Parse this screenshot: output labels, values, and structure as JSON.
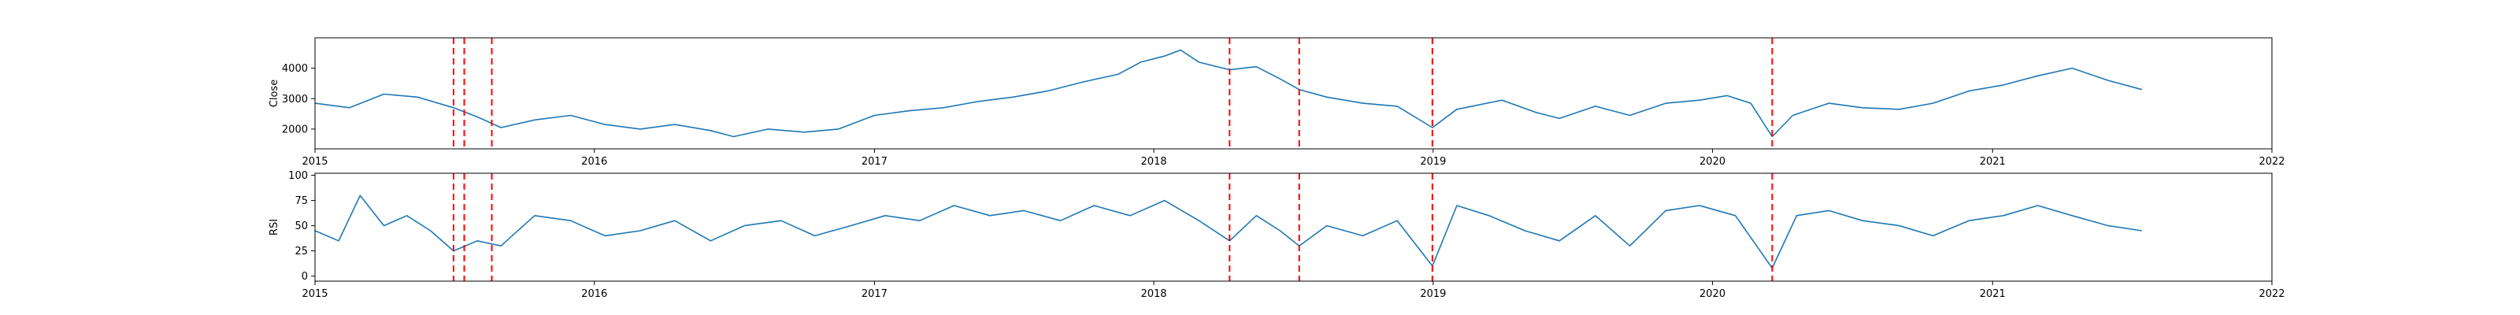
{
  "chart_data": [
    {
      "type": "line",
      "ylabel": "Close",
      "xlabel": "",
      "x_ticks": [
        "2015",
        "2016",
        "2017",
        "2018",
        "2019",
        "2020",
        "2021",
        "2022"
      ],
      "xlim": [
        "2015-01-01",
        "2022-01-01"
      ],
      "y_ticks": [
        2000,
        3000,
        4000
      ],
      "ylim": [
        1350,
        5000
      ],
      "series": [
        {
          "color": "#1f77b4",
          "x": [
            "2015-01-01",
            "2015-02-15",
            "2015-04-01",
            "2015-05-15",
            "2015-07-01",
            "2015-08-01",
            "2015-09-01",
            "2015-10-15",
            "2015-12-01",
            "2016-01-15",
            "2016-03-01",
            "2016-04-15",
            "2016-06-01",
            "2016-07-01",
            "2016-08-15",
            "2016-10-01",
            "2016-11-15",
            "2017-01-01",
            "2017-02-15",
            "2017-04-01",
            "2017-05-15",
            "2017-07-01",
            "2017-08-15",
            "2017-10-01",
            "2017-11-15",
            "2017-12-15",
            "2018-01-15",
            "2018-02-05",
            "2018-03-01",
            "2018-04-10",
            "2018-05-15",
            "2018-06-15",
            "2018-07-10",
            "2018-08-15",
            "2018-10-01",
            "2018-11-15",
            "2018-12-31",
            "2019-02-01",
            "2019-04-01",
            "2019-05-15",
            "2019-06-15",
            "2019-08-01",
            "2019-09-15",
            "2019-11-01",
            "2019-12-15",
            "2020-01-20",
            "2020-02-20",
            "2020-03-19",
            "2020-04-15",
            "2020-06-01",
            "2020-07-15",
            "2020-09-01",
            "2020-10-15",
            "2020-12-01",
            "2021-01-15",
            "2021-03-01",
            "2021-04-15",
            "2021-06-01",
            "2021-07-15"
          ],
          "y": [
            2850,
            2700,
            3150,
            3050,
            2700,
            2400,
            2050,
            2300,
            2450,
            2150,
            2000,
            2150,
            1950,
            1750,
            2000,
            1900,
            2000,
            2450,
            2600,
            2700,
            2900,
            3050,
            3250,
            3550,
            3800,
            4200,
            4400,
            4600,
            4200,
            3950,
            4050,
            3650,
            3300,
            3050,
            2850,
            2750,
            2050,
            2650,
            2950,
            2550,
            2350,
            2750,
            2450,
            2850,
            2950,
            3100,
            2850,
            1750,
            2450,
            2850,
            2700,
            2650,
            2850,
            3250,
            3450,
            3750,
            4000,
            3600,
            3300
          ]
        }
      ],
      "vlines": [
        "2015-07-01",
        "2015-07-15",
        "2015-08-20",
        "2018-04-10",
        "2018-07-10",
        "2018-12-31",
        "2020-03-19"
      ],
      "vline_color": "#ff0000",
      "grid": false,
      "legend": false
    },
    {
      "type": "line",
      "ylabel": "RSI",
      "xlabel": "",
      "x_ticks": [
        "2015",
        "2016",
        "2017",
        "2018",
        "2019",
        "2020",
        "2021",
        "2022"
      ],
      "xlim": [
        "2015-01-01",
        "2022-01-01"
      ],
      "y_ticks": [
        0,
        25,
        50,
        75,
        100
      ],
      "ylim": [
        -5,
        102
      ],
      "series": [
        {
          "color": "#1f77b4",
          "x": [
            "2015-01-01",
            "2015-02-01",
            "2015-03-01",
            "2015-04-01",
            "2015-05-01",
            "2015-06-01",
            "2015-07-01",
            "2015-08-01",
            "2015-09-01",
            "2015-10-15",
            "2015-12-01",
            "2016-01-15",
            "2016-03-01",
            "2016-04-15",
            "2016-06-01",
            "2016-07-15",
            "2016-09-01",
            "2016-10-15",
            "2016-12-01",
            "2017-01-15",
            "2017-03-01",
            "2017-04-15",
            "2017-06-01",
            "2017-07-15",
            "2017-09-01",
            "2017-10-15",
            "2017-12-01",
            "2018-01-15",
            "2018-03-01",
            "2018-04-10",
            "2018-05-15",
            "2018-06-15",
            "2018-07-10",
            "2018-08-15",
            "2018-10-01",
            "2018-11-15",
            "2018-12-31",
            "2019-02-01",
            "2019-03-15",
            "2019-05-01",
            "2019-06-15",
            "2019-08-01",
            "2019-09-15",
            "2019-11-01",
            "2019-12-15",
            "2020-01-31",
            "2020-03-19",
            "2020-04-20",
            "2020-06-01",
            "2020-07-15",
            "2020-09-01",
            "2020-10-15",
            "2020-12-01",
            "2021-01-15",
            "2021-03-01",
            "2021-04-15",
            "2021-06-01",
            "2021-07-15"
          ],
          "y": [
            45,
            35,
            80,
            50,
            60,
            45,
            25,
            35,
            30,
            60,
            55,
            40,
            45,
            55,
            35,
            50,
            55,
            40,
            50,
            60,
            55,
            70,
            60,
            65,
            55,
            70,
            60,
            75,
            55,
            35,
            60,
            45,
            30,
            50,
            40,
            55,
            10,
            70,
            60,
            45,
            35,
            60,
            30,
            65,
            70,
            60,
            8,
            60,
            65,
            55,
            50,
            40,
            55,
            60,
            70,
            60,
            50,
            45
          ]
        }
      ],
      "vlines": [
        "2015-07-01",
        "2015-07-15",
        "2015-08-20",
        "2018-04-10",
        "2018-07-10",
        "2018-12-31",
        "2020-03-19"
      ],
      "vline_color": "#ff0000",
      "grid": false,
      "legend": false
    }
  ]
}
